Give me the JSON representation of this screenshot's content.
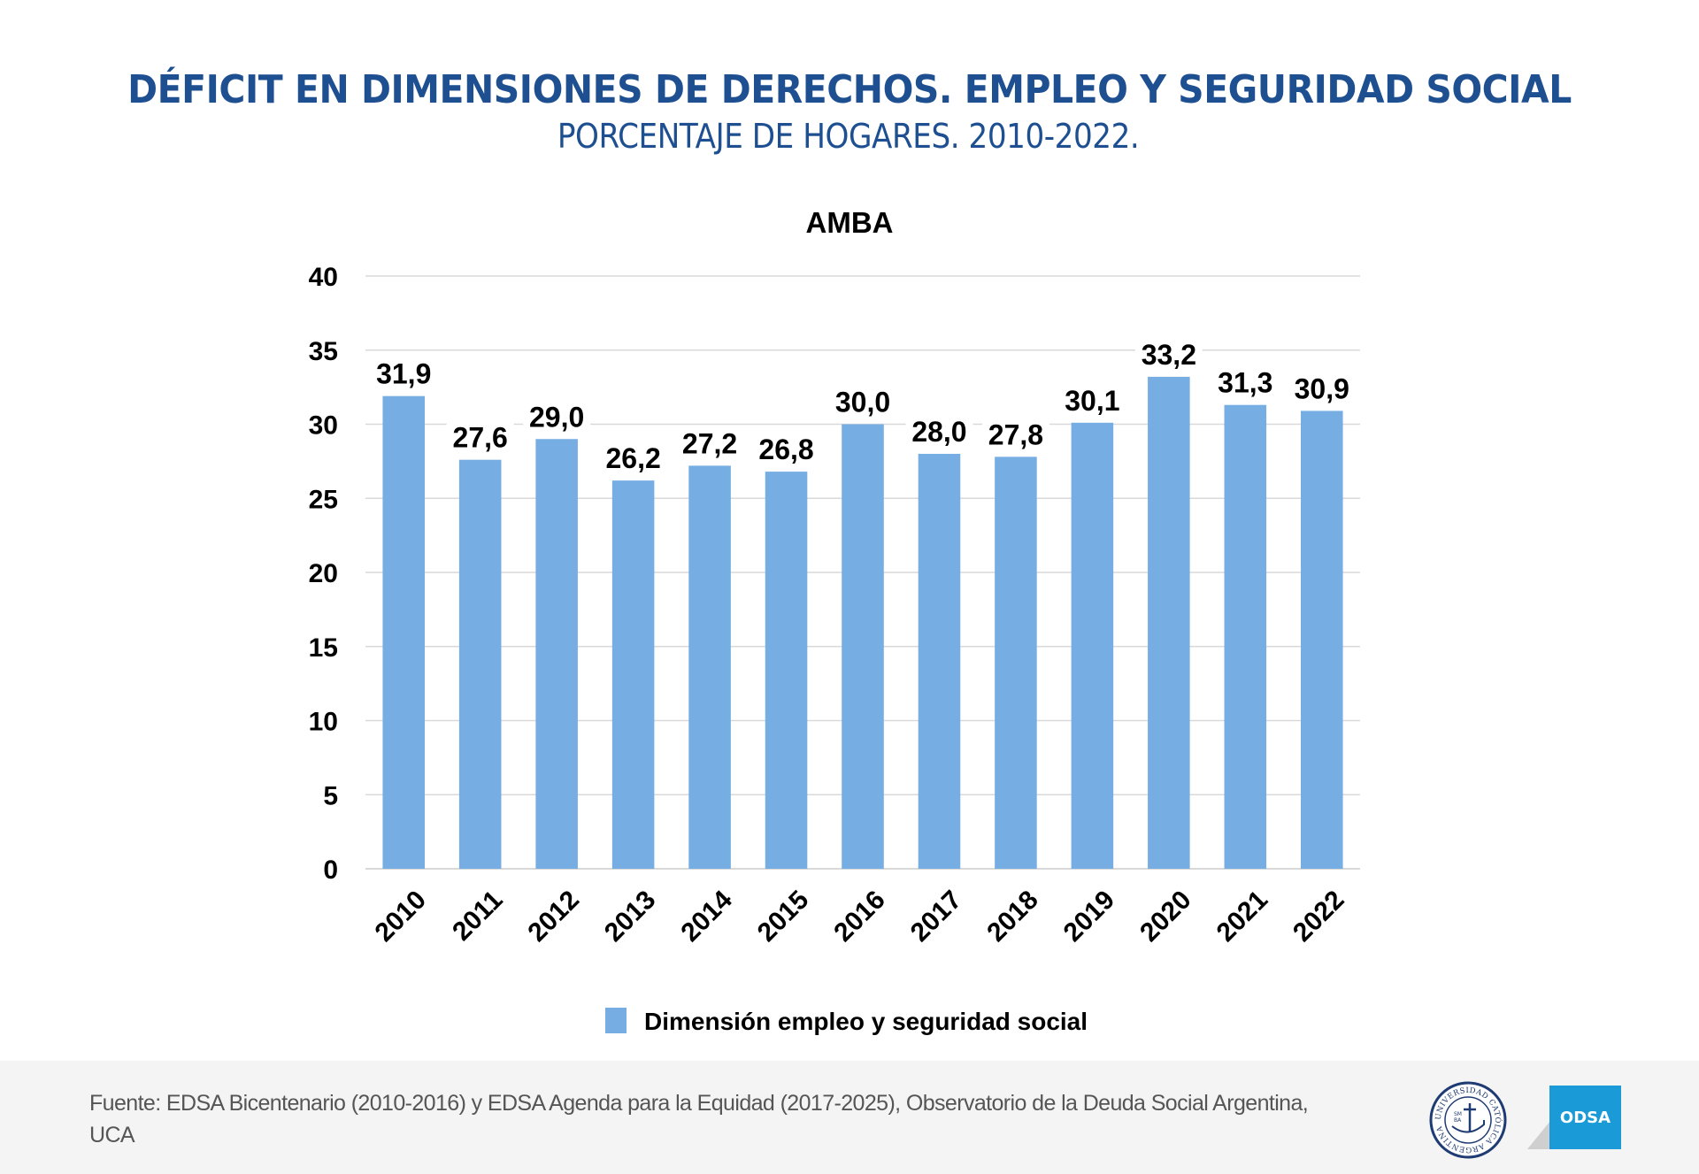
{
  "header": {
    "title": "DÉFICIT EN DIMENSIONES DE DERECHOS. EMPLEO Y SEGURIDAD SOCIAL",
    "subtitle": "PORCENTAJE DE HOGARES. 2010-2022."
  },
  "chart_data": {
    "type": "bar",
    "title": "AMBA",
    "xlabel": "",
    "ylabel": "",
    "categories": [
      "2010",
      "2011",
      "2012",
      "2013",
      "2014",
      "2015",
      "2016",
      "2017",
      "2018",
      "2019",
      "2020",
      "2021",
      "2022"
    ],
    "series": [
      {
        "name": "Dimensión empleo y seguridad social",
        "color": "#76ade3",
        "values": [
          31.9,
          27.6,
          29.0,
          26.2,
          27.2,
          26.8,
          30.0,
          28.0,
          27.8,
          30.1,
          33.2,
          31.3,
          30.9
        ],
        "labels": [
          "31,9",
          "27,6",
          "29,0",
          "26,2",
          "27,2",
          "26,8",
          "30,0",
          "28,0",
          "27,8",
          "30,1",
          "33,2",
          "31,3",
          "30,9"
        ]
      }
    ],
    "ylim": [
      0,
      40
    ],
    "yticks": [
      0,
      5,
      10,
      15,
      20,
      25,
      30,
      35,
      40
    ],
    "ytick_labels": [
      "0",
      "5",
      "10",
      "15",
      "20",
      "25",
      "30",
      "35",
      "40"
    ],
    "grid": true,
    "legend": {
      "position": "bottom",
      "entries": [
        "Dimensión empleo y seguridad social"
      ]
    },
    "data_labels": true,
    "x_tick_rotation": "diagonal"
  },
  "footer": {
    "source_text": "Fuente: EDSA Bicentenario (2010-2016) y EDSA Agenda para la Equidad (2017-2025), Observatorio de la Deuda Social Argentina, UCA",
    "uca_logo": {
      "icon": "uca-seal-icon",
      "ring_text": "UNIVERSIDAD CATÓLICA ARGENTINA",
      "inner_text_1": "SM",
      "inner_text_2": "BA",
      "color": "#1f3b73"
    },
    "odsa_logo": {
      "label": "ODSA",
      "color": "#1a9ad6"
    }
  }
}
